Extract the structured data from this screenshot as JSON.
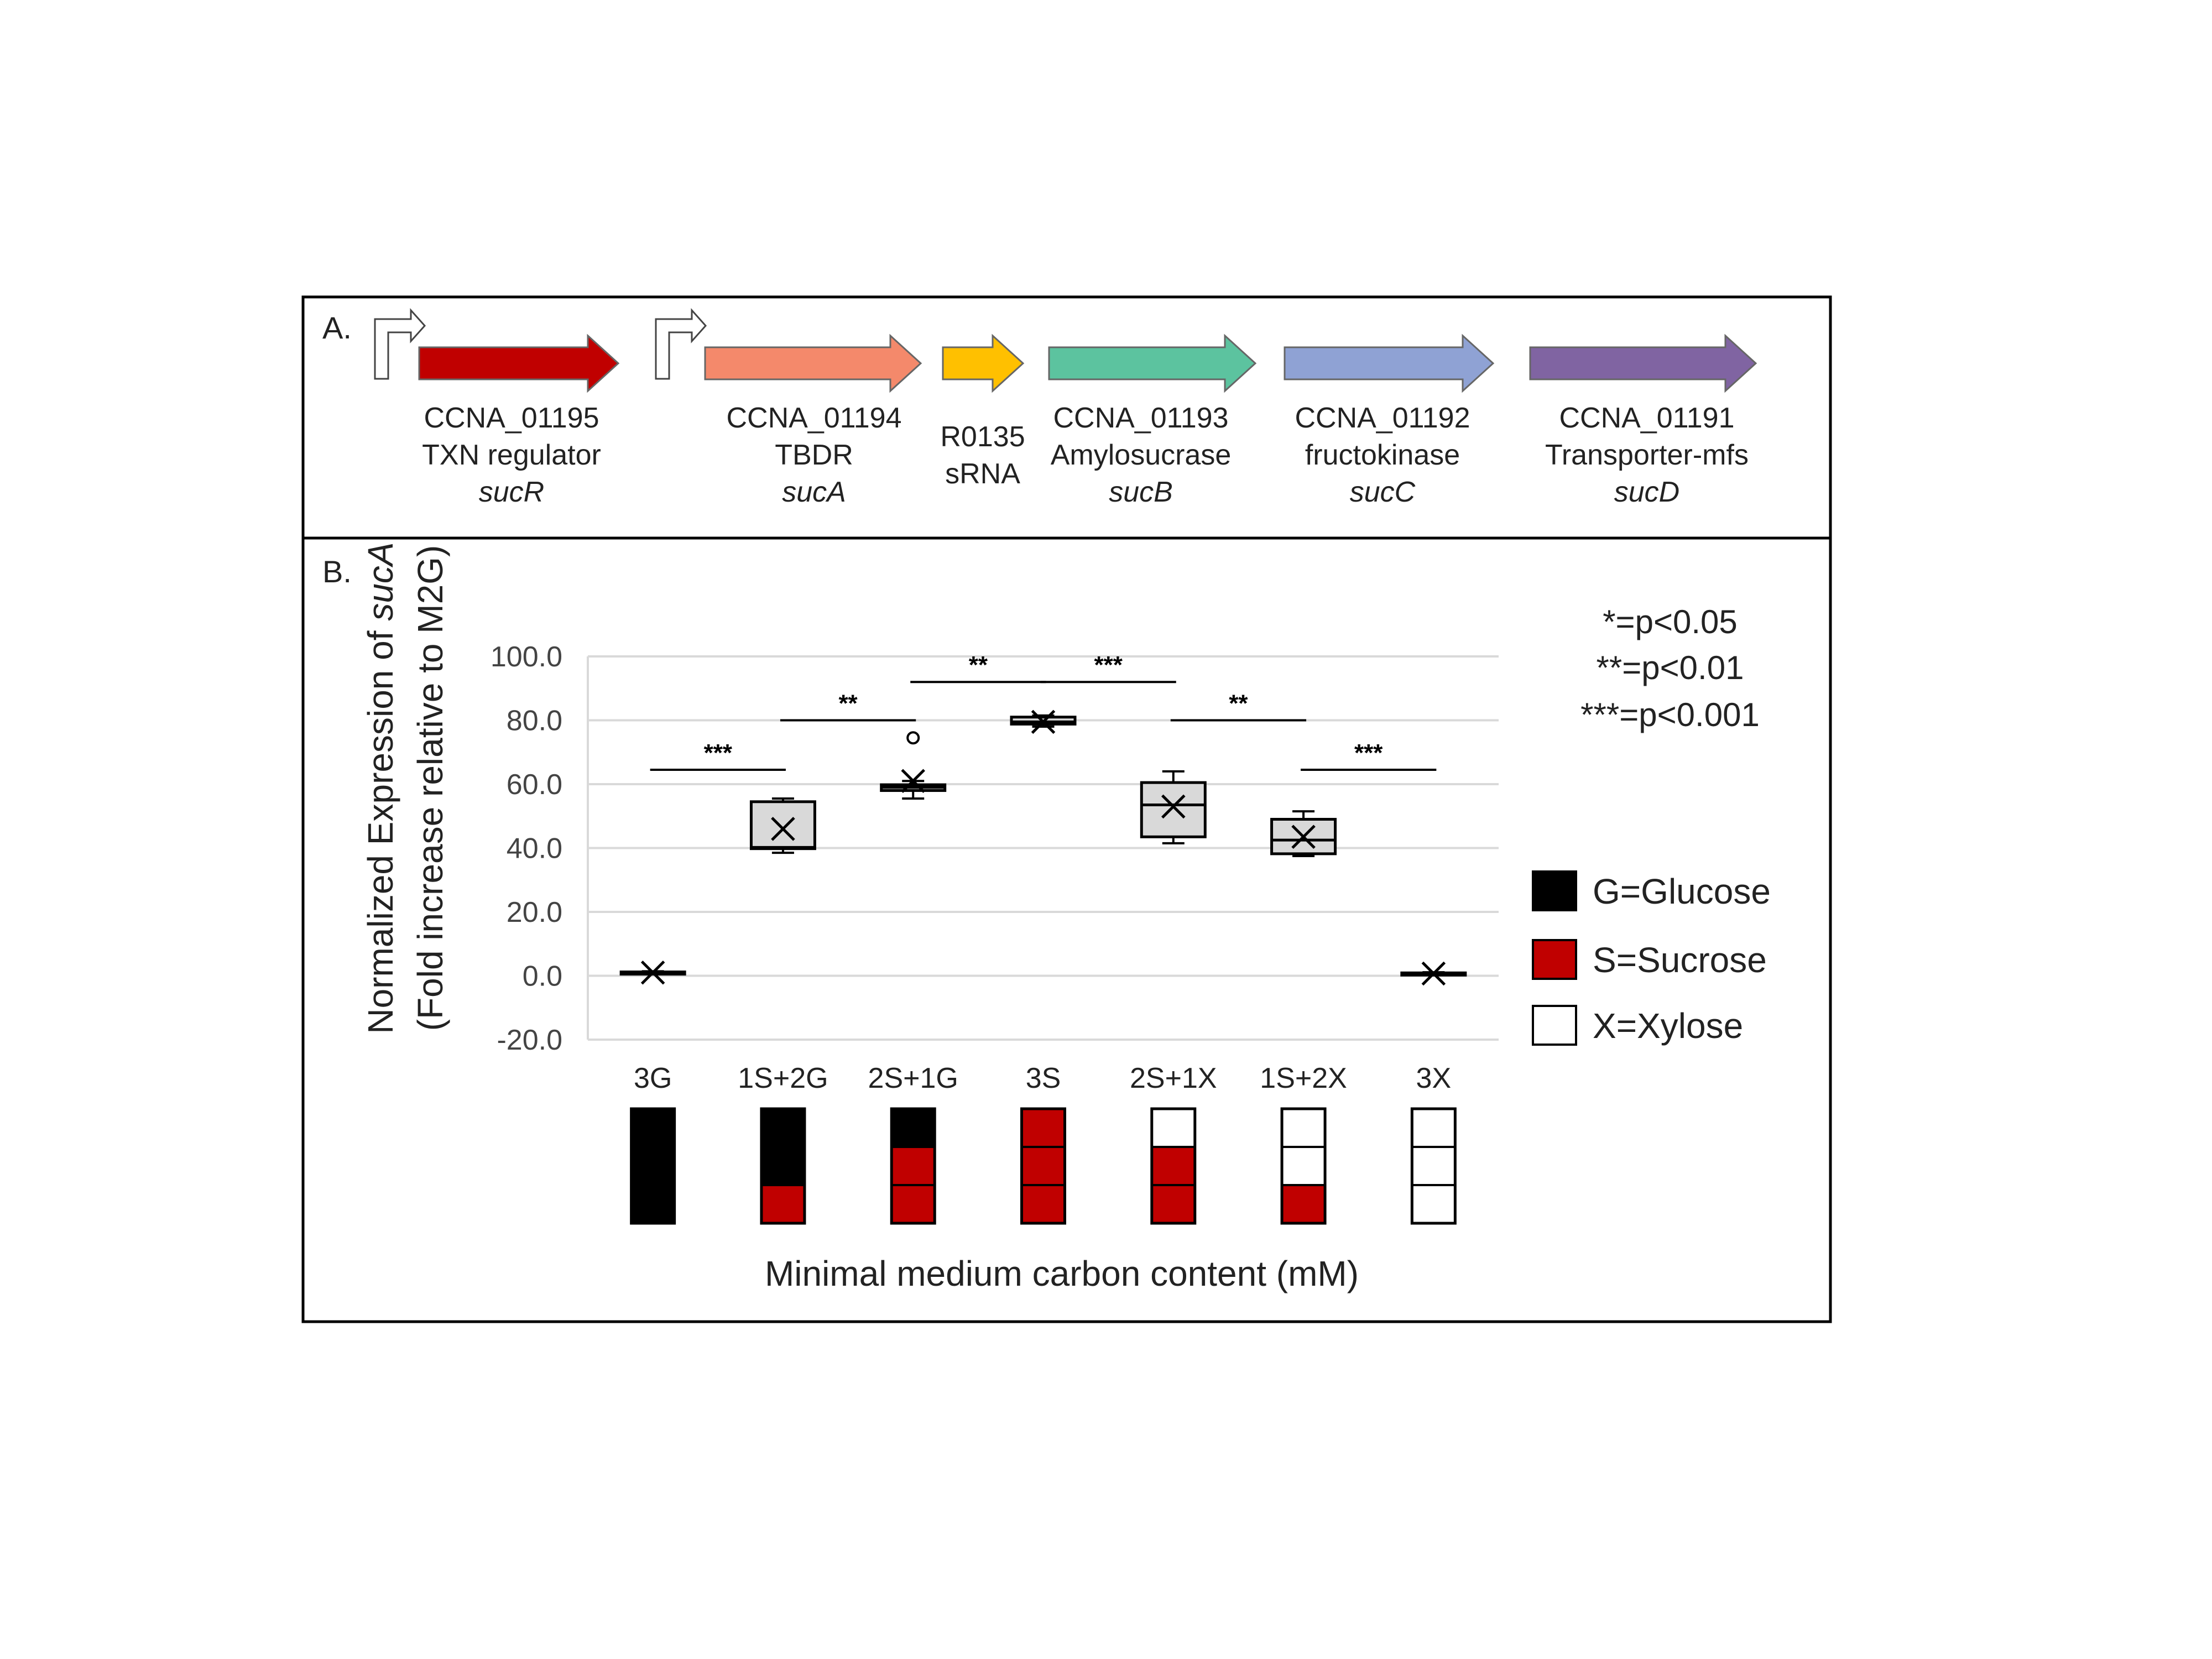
{
  "panel_a": {
    "label": "A.",
    "genes": [
      {
        "id": "CCNA_01195",
        "function": "TXN regulator",
        "name": "sucR",
        "color": "#c00000",
        "promoter": true
      },
      {
        "id": "CCNA_01194",
        "function": "TBDR",
        "name": "sucA",
        "color": "#f4896b",
        "promoter": true
      },
      {
        "id": "R0135",
        "function": "sRNA",
        "name": "",
        "color": "#ffc000",
        "promoter": false
      },
      {
        "id": "CCNA_01193",
        "function": "Amylosucrase",
        "name": "sucB",
        "color": "#5cc39f",
        "promoter": false
      },
      {
        "id": "CCNA_01192",
        "function": "fructokinase",
        "name": "sucC",
        "color": "#8fa2d4",
        "promoter": false
      },
      {
        "id": "CCNA_01191",
        "function": "Transporter-mfs",
        "name": "sucD",
        "color": "#8064a2",
        "promoter": false
      }
    ]
  },
  "panel_b": {
    "label": "B.",
    "significance_legend": [
      "*=p<0.05",
      "**=p<0.01",
      "***=p<0.001"
    ],
    "carbon_legend": [
      {
        "label": "G=Glucose",
        "color": "#000000"
      },
      {
        "label": "S=Sucrose",
        "color": "#c00000"
      },
      {
        "label": "X=Xylose",
        "color": "#ffffff"
      }
    ],
    "composition": [
      [
        "G",
        "G",
        "G"
      ],
      [
        "G",
        "G",
        "S"
      ],
      [
        "G",
        "S",
        "S"
      ],
      [
        "S",
        "S",
        "S"
      ],
      [
        "X",
        "S",
        "S"
      ],
      [
        "X",
        "X",
        "S"
      ],
      [
        "X",
        "X",
        "X"
      ]
    ]
  },
  "chart_data": {
    "type": "box",
    "categories": [
      "3G",
      "1S+2G",
      "2S+1G",
      "3S",
      "2S+1X",
      "1S+2X",
      "3X"
    ],
    "ylabel": "Normalized Expression of sucA",
    "ylabel_parts": [
      "Normalized Expression of ",
      "sucA"
    ],
    "ylabel2": "(Fold increase relative to M2G)",
    "xlabel": "Minimal medium carbon content (mM)",
    "ylim": [
      -20,
      100
    ],
    "yticks": [
      -20,
      0,
      20,
      40,
      60,
      80,
      100
    ],
    "ytick_labels": [
      "-20.0",
      "0.0",
      "20.0",
      "40.0",
      "60.0",
      "80.0",
      "100.0"
    ],
    "grid": true,
    "box_fill": "#d9d9d9",
    "boxes": [
      {
        "min": 0.6,
        "q1": 0.8,
        "median": 1.0,
        "q3": 1.2,
        "max": 1.4,
        "mean": 1.0,
        "outliers": []
      },
      {
        "min": 38.5,
        "q1": 39.8,
        "median": 40.2,
        "q3": 54.5,
        "max": 55.5,
        "mean": 46.0,
        "outliers": []
      },
      {
        "min": 55.5,
        "q1": 58.0,
        "median": 59.0,
        "q3": 59.8,
        "max": 61.0,
        "mean": 61.0,
        "outliers": [
          74.5
        ]
      },
      {
        "min": 78.0,
        "q1": 78.8,
        "median": 79.5,
        "q3": 81.0,
        "max": 81.5,
        "mean": 79.5,
        "outliers": []
      },
      {
        "min": 41.5,
        "q1": 43.5,
        "median": 53.5,
        "q3": 60.5,
        "max": 64.0,
        "mean": 53.0,
        "outliers": []
      },
      {
        "min": 37.5,
        "q1": 38.2,
        "median": 42.5,
        "q3": 49.0,
        "max": 51.5,
        "mean": 43.5,
        "outliers": []
      },
      {
        "min": 0.3,
        "q1": 0.5,
        "median": 0.7,
        "q3": 0.9,
        "max": 1.1,
        "mean": 0.7,
        "outliers": []
      }
    ],
    "significance": [
      {
        "from": 0,
        "to": 1,
        "y": 64.5,
        "label": "***"
      },
      {
        "from": 1,
        "to": 2,
        "y": 80.0,
        "label": "**"
      },
      {
        "from": 2,
        "to": 3,
        "y": 92.0,
        "label": "**"
      },
      {
        "from": 3,
        "to": 4,
        "y": 92.0,
        "label": "***"
      },
      {
        "from": 4,
        "to": 5,
        "y": 80.0,
        "label": "**"
      },
      {
        "from": 5,
        "to": 6,
        "y": 64.5,
        "label": "***"
      }
    ]
  }
}
